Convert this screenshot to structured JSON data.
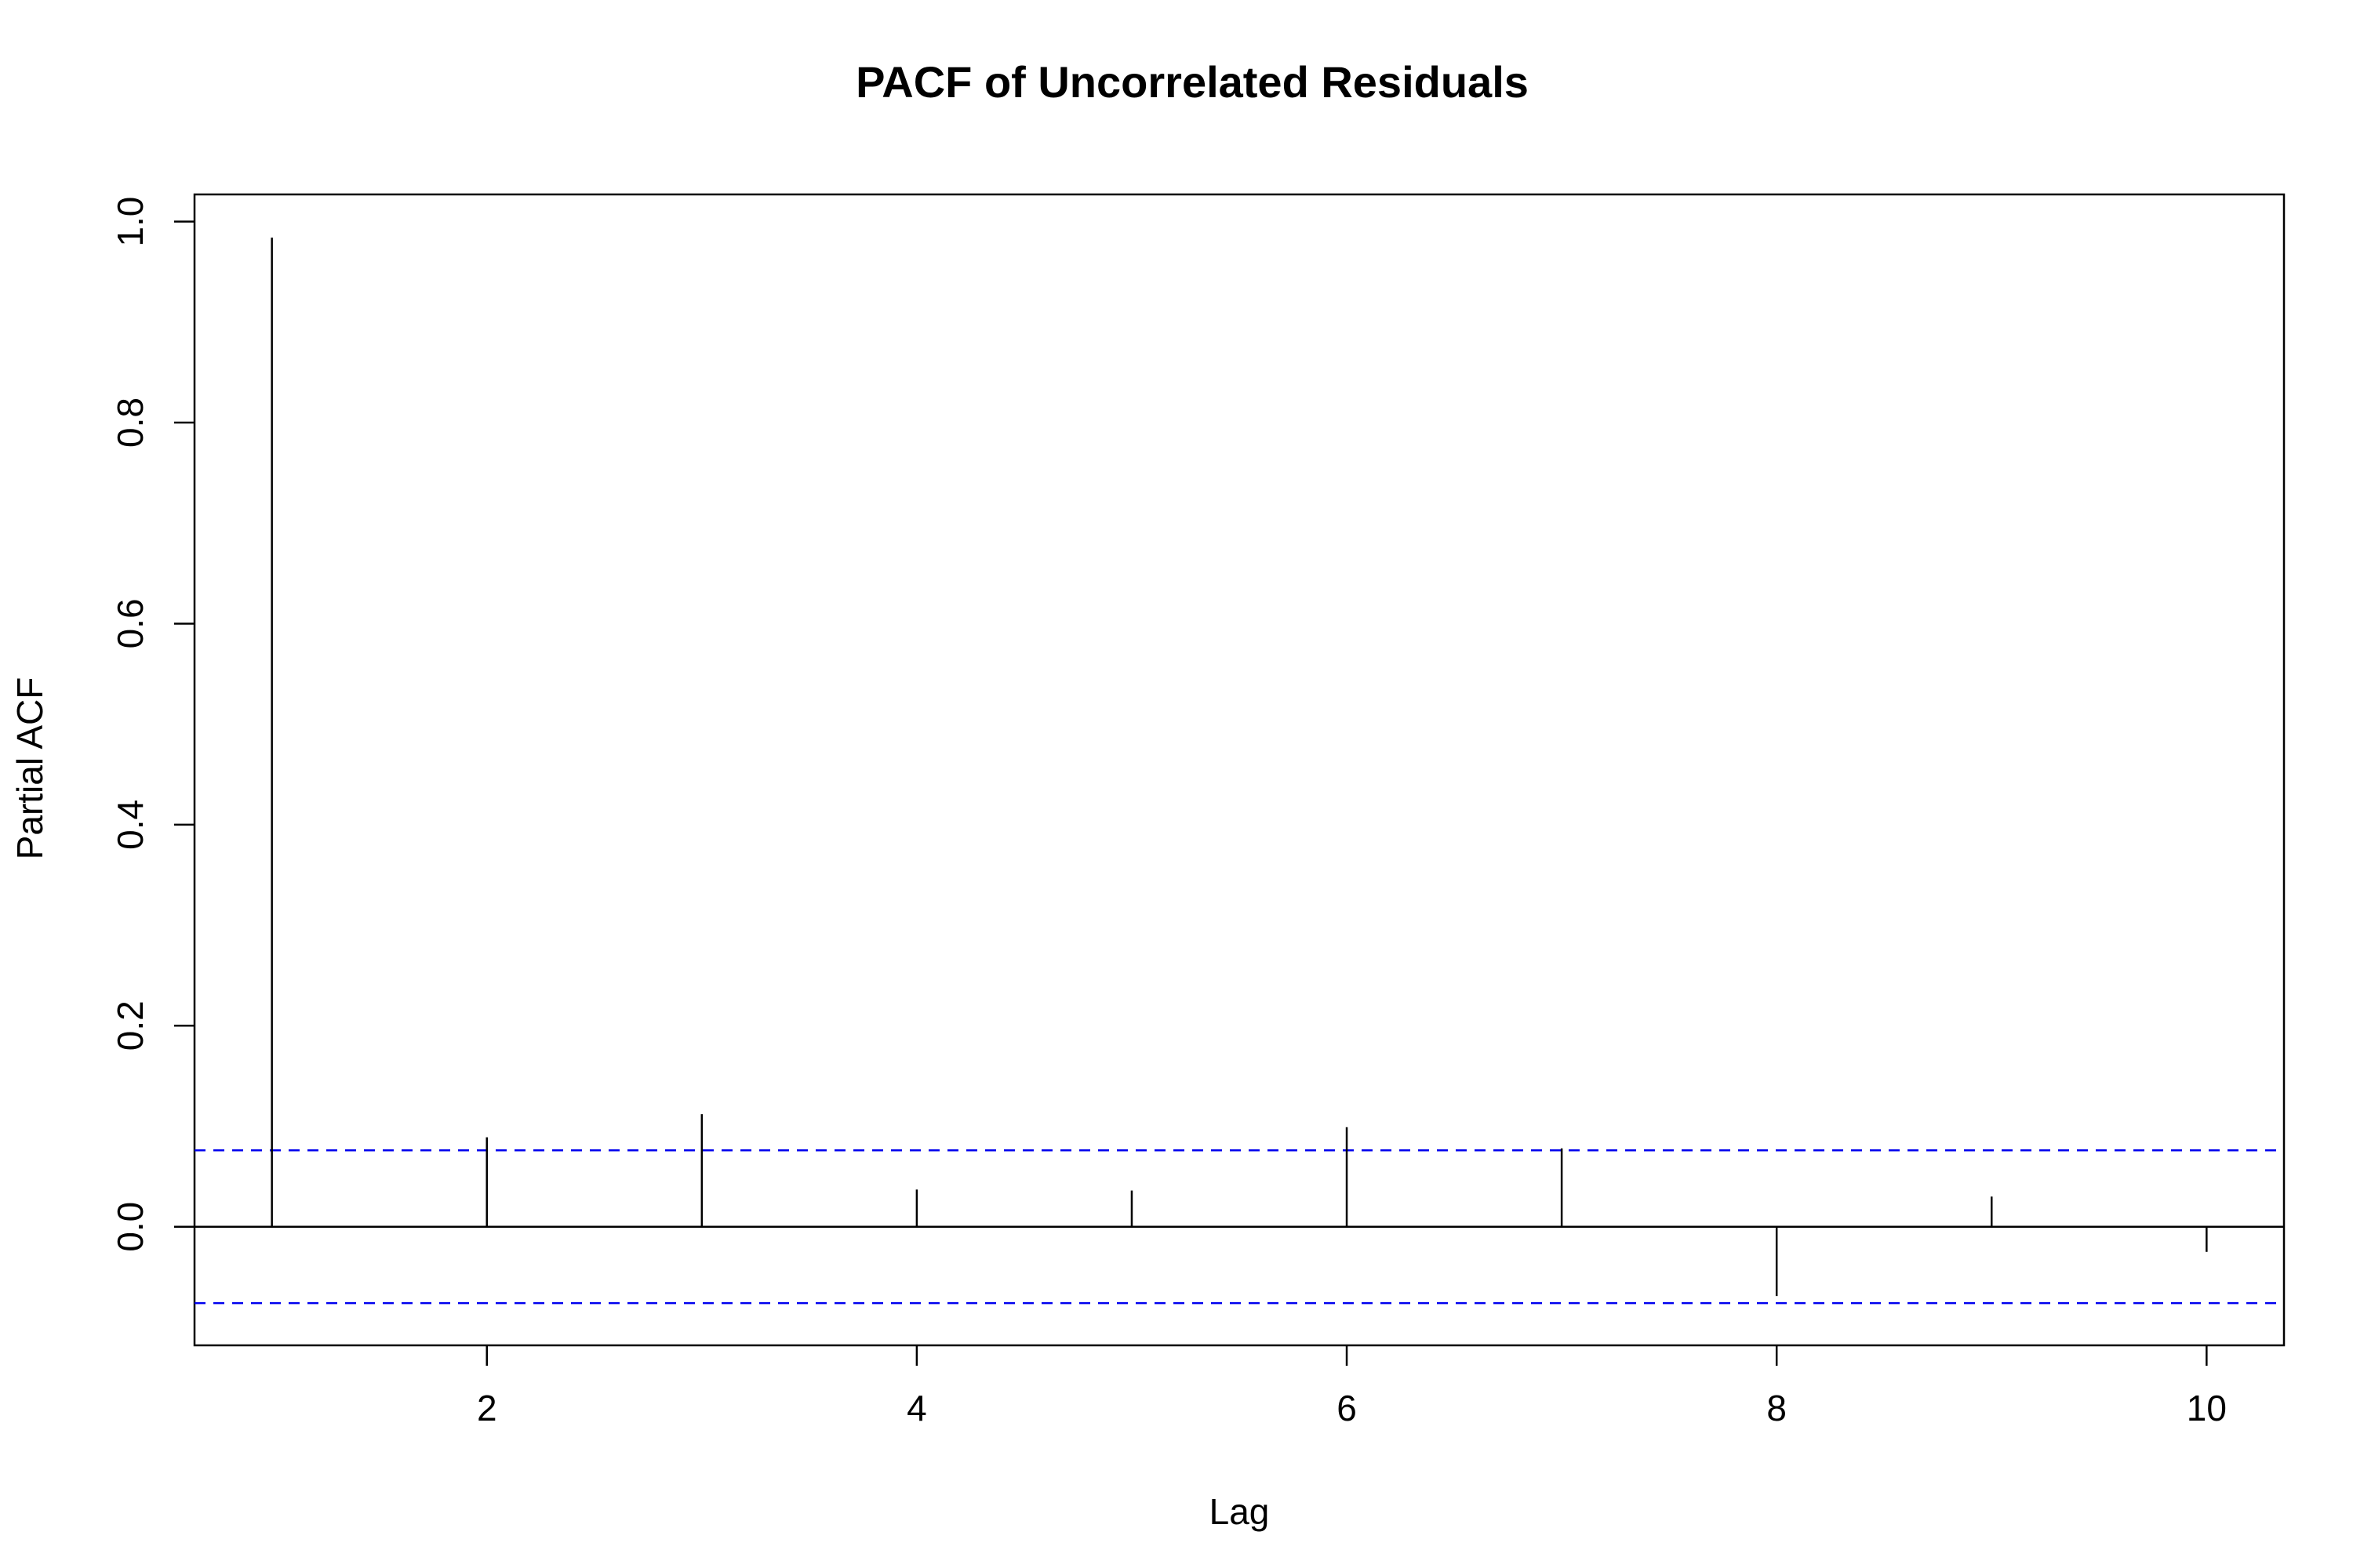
{
  "chart_data": {
    "type": "bar",
    "title": "PACF of Uncorrelated Residuals",
    "xlabel": "Lag",
    "ylabel": "Partial ACF",
    "x": [
      1,
      2,
      3,
      4,
      5,
      6,
      7,
      8,
      9,
      10
    ],
    "values": [
      0.984,
      0.089,
      0.112,
      0.037,
      0.036,
      0.099,
      0.078,
      -0.069,
      0.03,
      -0.025
    ],
    "xlim": [
      0.64,
      10.36
    ],
    "ylim": [
      -0.118,
      1.027
    ],
    "x_ticks": [
      2,
      4,
      6,
      8,
      10
    ],
    "x_tick_labels": [
      "2",
      "4",
      "6",
      "8",
      "10"
    ],
    "y_ticks": [
      0.0,
      0.2,
      0.4,
      0.6,
      0.8,
      1.0
    ],
    "y_tick_labels": [
      "0.0",
      "0.2",
      "0.4",
      "0.6",
      "0.8",
      "1.0"
    ],
    "confidence_bounds": [
      0.076,
      -0.076
    ],
    "zero_line": 0,
    "grid": false,
    "colors": {
      "spike": "#000000",
      "confidence": "#0000ee",
      "axis": "#000000"
    }
  }
}
